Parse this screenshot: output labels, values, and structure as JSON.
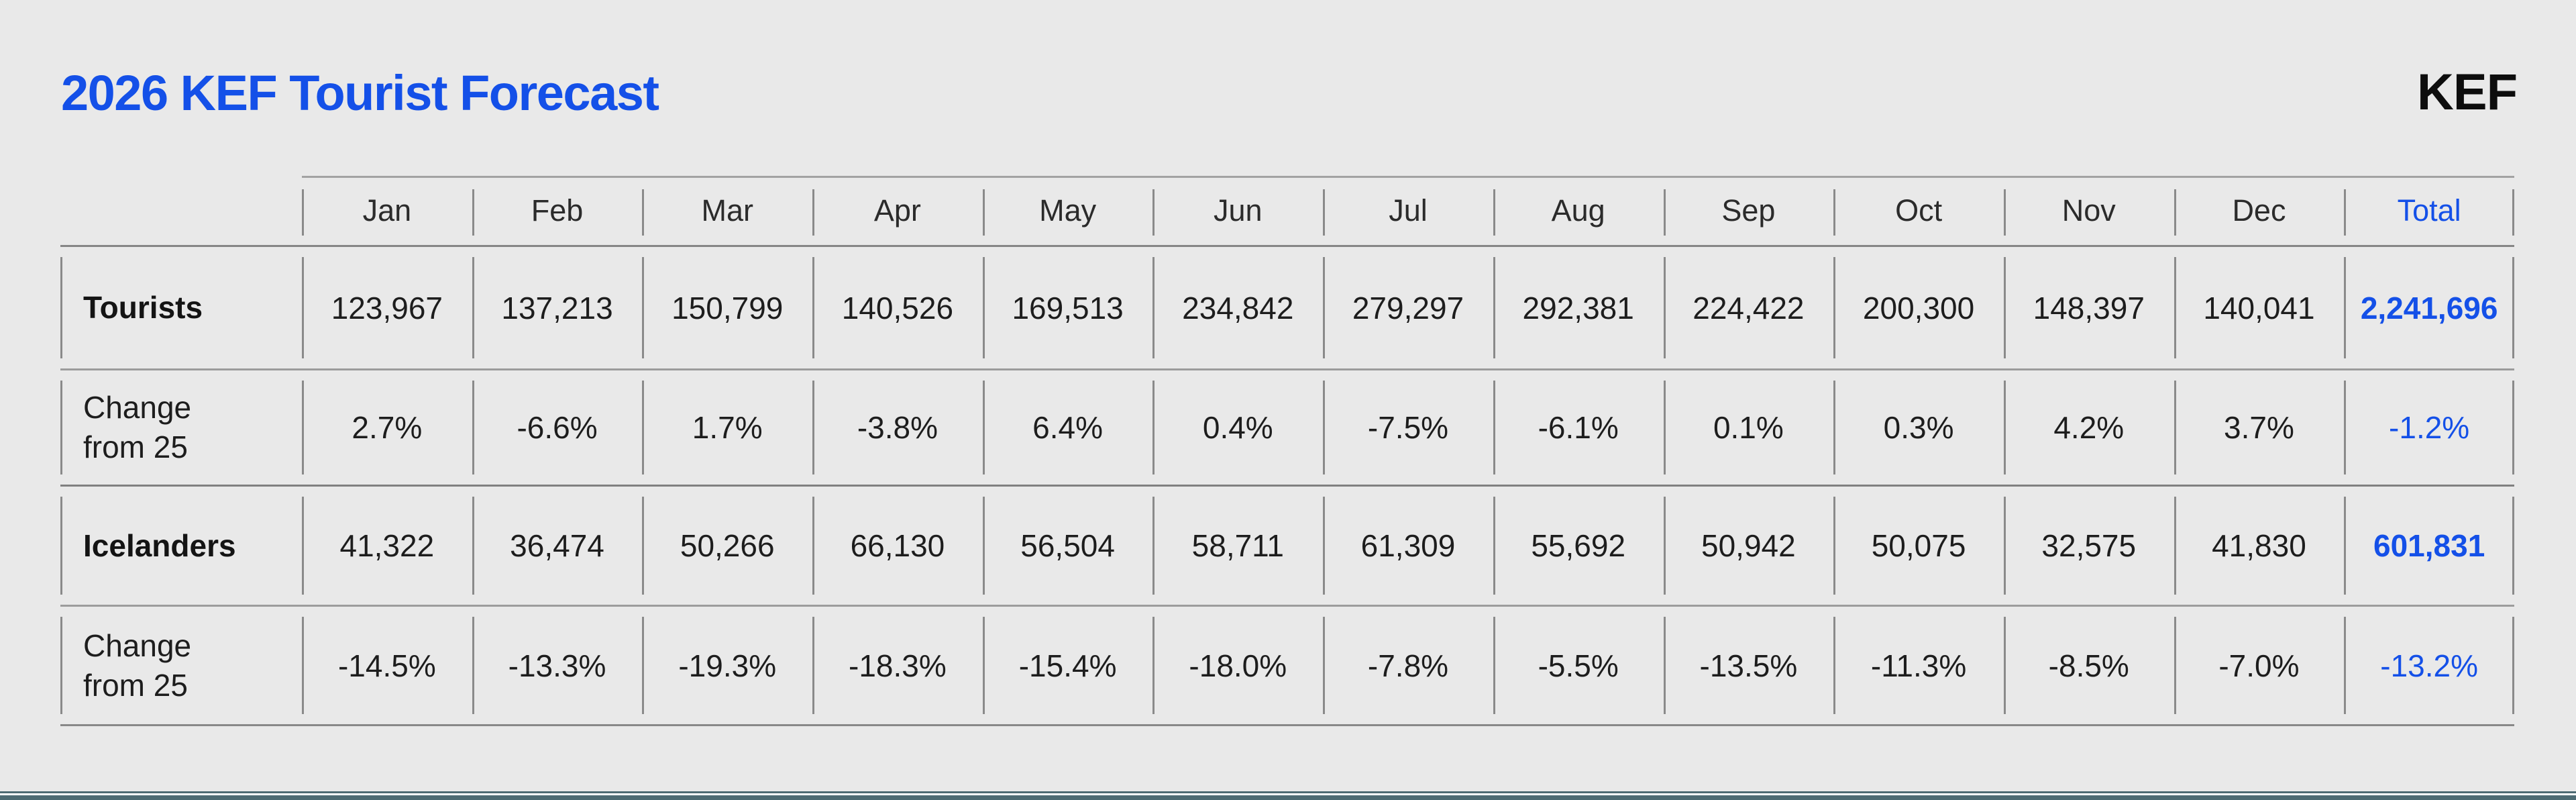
{
  "title": "2026 KEF Tourist Forecast",
  "logo_text": "KEF",
  "colors": {
    "accent": "#1450e8",
    "page_bg": "#e9e9e9",
    "footer_bar": "#4e6b73"
  },
  "table": {
    "headers": [
      "Jan",
      "Feb",
      "Mar",
      "Apr",
      "May",
      "Jun",
      "Jul",
      "Aug",
      "Sep",
      "Oct",
      "Nov",
      "Dec",
      "Total"
    ],
    "rows": [
      {
        "label": "Tourists",
        "cells": [
          "123,967",
          "137,213",
          "150,799",
          "140,526",
          "169,513",
          "234,842",
          "279,297",
          "292,381",
          "224,422",
          "200,300",
          "148,397",
          "140,041",
          "2,241,696"
        ]
      },
      {
        "label": "Change from 25",
        "cells": [
          "2.7%",
          "-6.6%",
          "1.7%",
          "-3.8%",
          "6.4%",
          "0.4%",
          "-7.5%",
          "-6.1%",
          "0.1%",
          "0.3%",
          "4.2%",
          "3.7%",
          "-1.2%"
        ]
      },
      {
        "label": "Icelanders",
        "cells": [
          "41,322",
          "36,474",
          "50,266",
          "66,130",
          "56,504",
          "58,711",
          "61,309",
          "55,692",
          "50,942",
          "50,075",
          "32,575",
          "41,830",
          "601,831"
        ]
      },
      {
        "label": "Change from 25",
        "cells": [
          "-14.5%",
          "-13.3%",
          "-19.3%",
          "-18.3%",
          "-15.4%",
          "-18.0%",
          "-7.8%",
          "-5.5%",
          "-13.5%",
          "-11.3%",
          "-8.5%",
          "-7.0%",
          "-13.2%"
        ]
      }
    ]
  },
  "chart_data": {
    "type": "table",
    "title": "2026 KEF Tourist Forecast",
    "categories": [
      "Jan",
      "Feb",
      "Mar",
      "Apr",
      "May",
      "Jun",
      "Jul",
      "Aug",
      "Sep",
      "Oct",
      "Nov",
      "Dec"
    ],
    "series": [
      {
        "name": "Tourists",
        "values": [
          123967,
          137213,
          150799,
          140526,
          169513,
          234842,
          279297,
          292381,
          224422,
          200300,
          148397,
          140041
        ],
        "total": 2241696
      },
      {
        "name": "Tourists change from 25 (%)",
        "values": [
          2.7,
          -6.6,
          1.7,
          -3.8,
          6.4,
          0.4,
          -7.5,
          -6.1,
          0.1,
          0.3,
          4.2,
          3.7
        ],
        "total": -1.2
      },
      {
        "name": "Icelanders",
        "values": [
          41322,
          36474,
          50266,
          66130,
          56504,
          58711,
          61309,
          55692,
          50942,
          50075,
          32575,
          41830
        ],
        "total": 601831
      },
      {
        "name": "Icelanders change from 25 (%)",
        "values": [
          -14.5,
          -13.3,
          -19.3,
          -18.3,
          -15.4,
          -18.0,
          -7.8,
          -5.5,
          -13.5,
          -11.3,
          -8.5,
          -7.0
        ],
        "total": -13.2
      }
    ]
  }
}
